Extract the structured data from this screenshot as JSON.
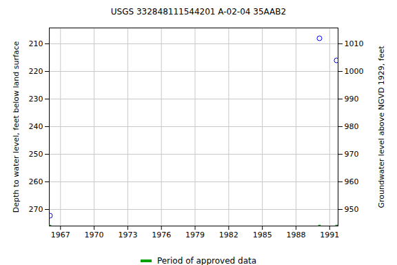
{
  "chart_data": {
    "type": "scatter",
    "title": "USGS 332848111544201 A-02-04 35AAB2",
    "y_label": "Depth to water level, feet below land surface",
    "y2_label": "Groundwater level above NGVD 1929, feet",
    "x": [
      1966.06,
      1990.09,
      1991.62
    ],
    "series": [
      {
        "values": [
          272.25,
          208,
          216
        ],
        "color": "#0000ff",
        "marker": "circle-open"
      }
    ],
    "approved_periods": {
      "name": "Period of approved data",
      "color": "#00a000",
      "x": [
        1966.06,
        1990.09,
        1991.62
      ]
    },
    "xlim": [
      1966.0,
      1991.75
    ],
    "xticks": [
      1967,
      1970,
      1973,
      1976,
      1979,
      1982,
      1985,
      1988,
      1991
    ],
    "ylim": [
      204.25,
      276
    ],
    "yticks": [
      210,
      220,
      230,
      240,
      250,
      260,
      270
    ],
    "y2lim": [
      1015.75,
      944
    ],
    "y2ticks": [
      950,
      960,
      970,
      980,
      990,
      1000,
      1010
    ],
    "grid": true
  }
}
